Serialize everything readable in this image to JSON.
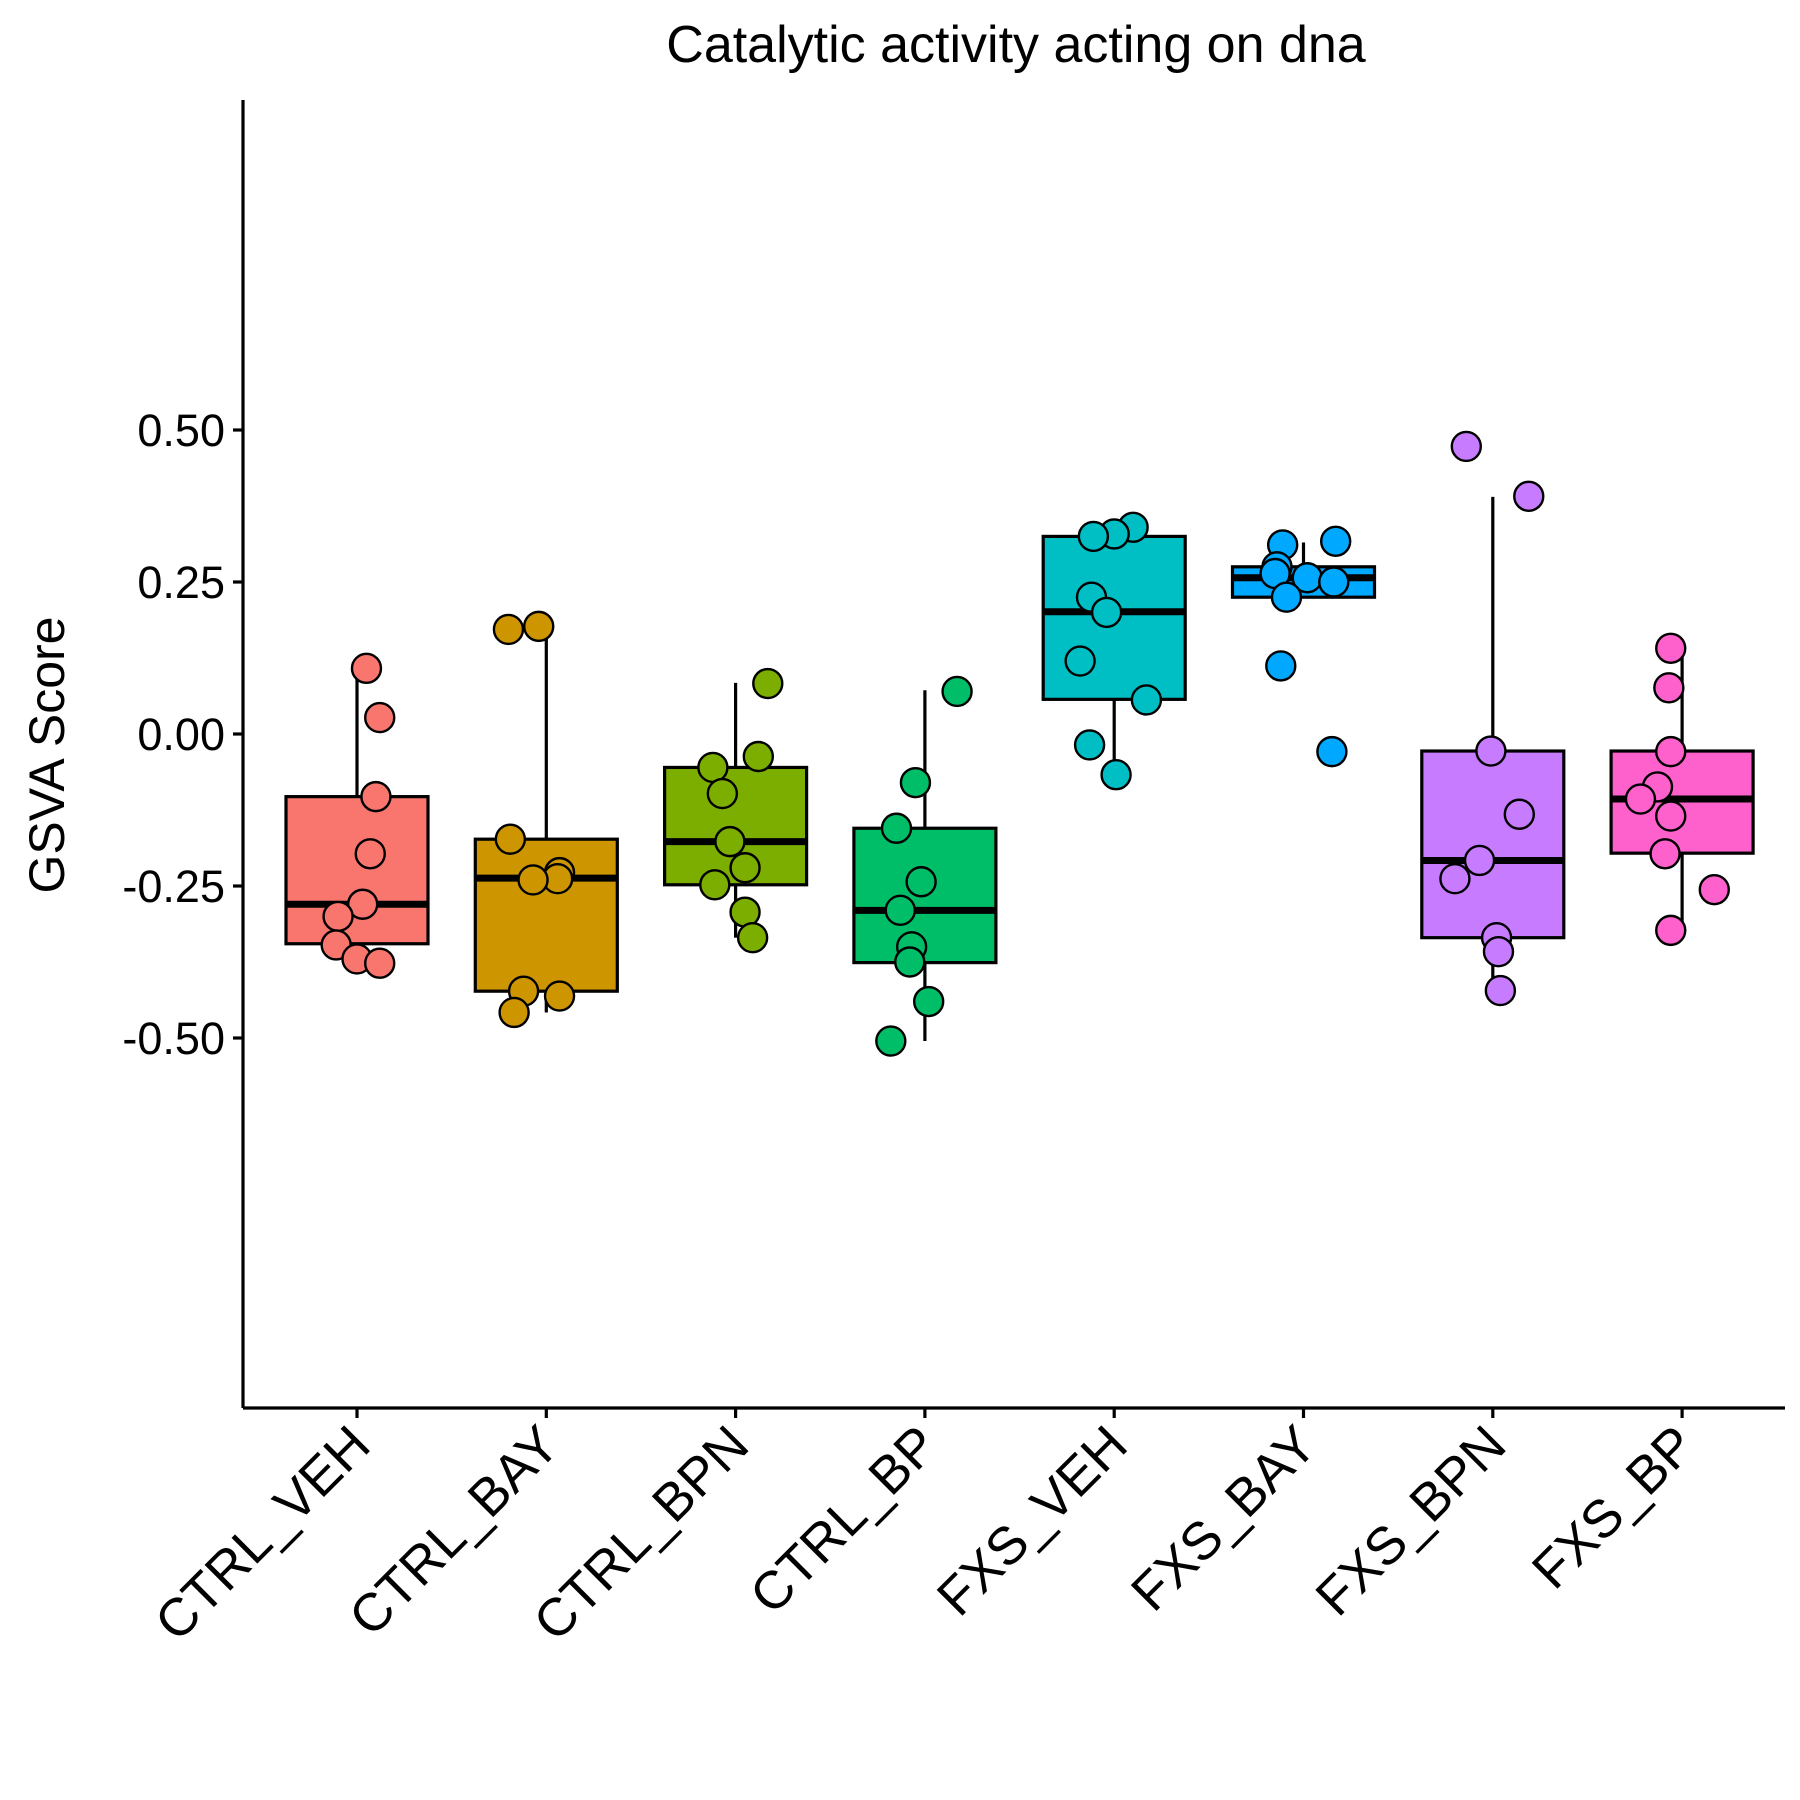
{
  "chart_data": {
    "type": "boxplot",
    "title": "Catalytic activity acting on dna",
    "xlabel": "",
    "ylabel": "GSVA Score",
    "ylim": [
      -0.55,
      0.52
    ],
    "yticks": [
      0.5,
      0.25,
      0.0,
      -0.25,
      -0.5
    ],
    "ytick_labels": [
      "0.50",
      "0.25",
      "0.00",
      "-0.25",
      "-0.50"
    ],
    "legend": "none",
    "grid": false,
    "categories": [
      "CTRL_VEH",
      "CTRL_BAY",
      "CTRL_BPN",
      "CTRL_BP",
      "FXS_VEH",
      "FXS_BAY",
      "FXS_BPN",
      "FXS_BP"
    ],
    "groups": [
      {
        "name": "CTRL_VEH",
        "color": "#F8766D",
        "whisker_low": -0.37,
        "q1": -0.345,
        "median": -0.28,
        "q3": -0.103,
        "whisker_high": 0.11,
        "points": [
          {
            "jitter": 0.05,
            "y": 0.108
          },
          {
            "jitter": 0.12,
            "y": 0.027
          },
          {
            "jitter": 0.1,
            "y": -0.103
          },
          {
            "jitter": 0.07,
            "y": -0.197
          },
          {
            "jitter": 0.03,
            "y": -0.28
          },
          {
            "jitter": -0.1,
            "y": -0.3
          },
          {
            "jitter": -0.11,
            "y": -0.347
          },
          {
            "jitter": 0.0,
            "y": -0.37
          },
          {
            "jitter": 0.12,
            "y": -0.377
          }
        ]
      },
      {
        "name": "CTRL_BAY",
        "color": "#CD9600",
        "whisker_low": -0.458,
        "q1": -0.423,
        "median": -0.237,
        "q3": -0.173,
        "whisker_high": 0.178,
        "points": [
          {
            "jitter": -0.2,
            "y": 0.172
          },
          {
            "jitter": -0.04,
            "y": 0.177
          },
          {
            "jitter": -0.19,
            "y": -0.173
          },
          {
            "jitter": 0.07,
            "y": -0.228
          },
          {
            "jitter": 0.06,
            "y": -0.238
          },
          {
            "jitter": -0.07,
            "y": -0.24
          },
          {
            "jitter": -0.12,
            "y": -0.423
          },
          {
            "jitter": 0.07,
            "y": -0.431
          },
          {
            "jitter": -0.17,
            "y": -0.458
          }
        ]
      },
      {
        "name": "CTRL_BPN",
        "color": "#7CAE00",
        "whisker_low": -0.335,
        "q1": -0.248,
        "median": -0.177,
        "q3": -0.055,
        "whisker_high": 0.084,
        "points": [
          {
            "jitter": 0.17,
            "y": 0.083
          },
          {
            "jitter": 0.12,
            "y": -0.037
          },
          {
            "jitter": -0.12,
            "y": -0.055
          },
          {
            "jitter": -0.07,
            "y": -0.098
          },
          {
            "jitter": -0.03,
            "y": -0.177
          },
          {
            "jitter": 0.05,
            "y": -0.22
          },
          {
            "jitter": -0.11,
            "y": -0.248
          },
          {
            "jitter": 0.05,
            "y": -0.293
          },
          {
            "jitter": 0.09,
            "y": -0.335
          }
        ]
      },
      {
        "name": "CTRL_BP",
        "color": "#00BE67",
        "whisker_low": -0.505,
        "q1": -0.376,
        "median": -0.29,
        "q3": -0.155,
        "whisker_high": 0.072,
        "points": [
          {
            "jitter": 0.17,
            "y": 0.07
          },
          {
            "jitter": -0.05,
            "y": -0.08
          },
          {
            "jitter": -0.15,
            "y": -0.155
          },
          {
            "jitter": -0.02,
            "y": -0.243
          },
          {
            "jitter": -0.13,
            "y": -0.29
          },
          {
            "jitter": -0.07,
            "y": -0.35
          },
          {
            "jitter": -0.08,
            "y": -0.375
          },
          {
            "jitter": 0.02,
            "y": -0.44
          },
          {
            "jitter": -0.18,
            "y": -0.505
          }
        ]
      },
      {
        "name": "FXS_VEH",
        "color": "#00BFC4",
        "whisker_low": -0.067,
        "q1": 0.057,
        "median": 0.201,
        "q3": 0.325,
        "whisker_high": 0.325,
        "points": [
          {
            "jitter": 0.1,
            "y": 0.34
          },
          {
            "jitter": 0.0,
            "y": 0.329
          },
          {
            "jitter": -0.11,
            "y": 0.325
          },
          {
            "jitter": -0.12,
            "y": 0.225
          },
          {
            "jitter": -0.04,
            "y": 0.2
          },
          {
            "jitter": -0.18,
            "y": 0.12
          },
          {
            "jitter": 0.17,
            "y": 0.056
          },
          {
            "jitter": -0.13,
            "y": -0.018
          },
          {
            "jitter": 0.01,
            "y": -0.067
          }
        ]
      },
      {
        "name": "FXS_BAY",
        "color": "#00A9FF",
        "whisker_low": 0.225,
        "q1": 0.225,
        "median": 0.257,
        "q3": 0.275,
        "whisker_high": 0.315,
        "points": [
          {
            "jitter": 0.17,
            "y": 0.317
          },
          {
            "jitter": -0.11,
            "y": 0.311
          },
          {
            "jitter": -0.14,
            "y": 0.275
          },
          {
            "jitter": -0.15,
            "y": 0.264
          },
          {
            "jitter": 0.02,
            "y": 0.257
          },
          {
            "jitter": 0.16,
            "y": 0.25
          },
          {
            "jitter": -0.09,
            "y": 0.225
          },
          {
            "jitter": -0.12,
            "y": 0.112
          },
          {
            "jitter": 0.15,
            "y": -0.029
          }
        ]
      },
      {
        "name": "FXS_BPN",
        "color": "#C77CFF",
        "whisker_low": -0.422,
        "q1": -0.335,
        "median": -0.208,
        "q3": -0.028,
        "whisker_high": 0.39,
        "points": [
          {
            "jitter": -0.14,
            "y": 0.473
          },
          {
            "jitter": 0.19,
            "y": 0.391
          },
          {
            "jitter": -0.01,
            "y": -0.028
          },
          {
            "jitter": 0.14,
            "y": -0.132
          },
          {
            "jitter": -0.07,
            "y": -0.208
          },
          {
            "jitter": -0.2,
            "y": -0.238
          },
          {
            "jitter": 0.02,
            "y": -0.335
          },
          {
            "jitter": 0.03,
            "y": -0.358
          },
          {
            "jitter": 0.04,
            "y": -0.422
          }
        ]
      },
      {
        "name": "FXS_BP",
        "color": "#FF61CC",
        "whisker_low": -0.323,
        "q1": -0.196,
        "median": -0.107,
        "q3": -0.028,
        "whisker_high": 0.14,
        "points": [
          {
            "jitter": -0.06,
            "y": 0.141
          },
          {
            "jitter": -0.07,
            "y": 0.076
          },
          {
            "jitter": -0.06,
            "y": -0.029
          },
          {
            "jitter": -0.13,
            "y": -0.087
          },
          {
            "jitter": -0.22,
            "y": -0.107
          },
          {
            "jitter": -0.06,
            "y": -0.135
          },
          {
            "jitter": -0.09,
            "y": -0.197
          },
          {
            "jitter": 0.17,
            "y": -0.256
          },
          {
            "jitter": -0.06,
            "y": -0.323
          }
        ]
      }
    ]
  }
}
